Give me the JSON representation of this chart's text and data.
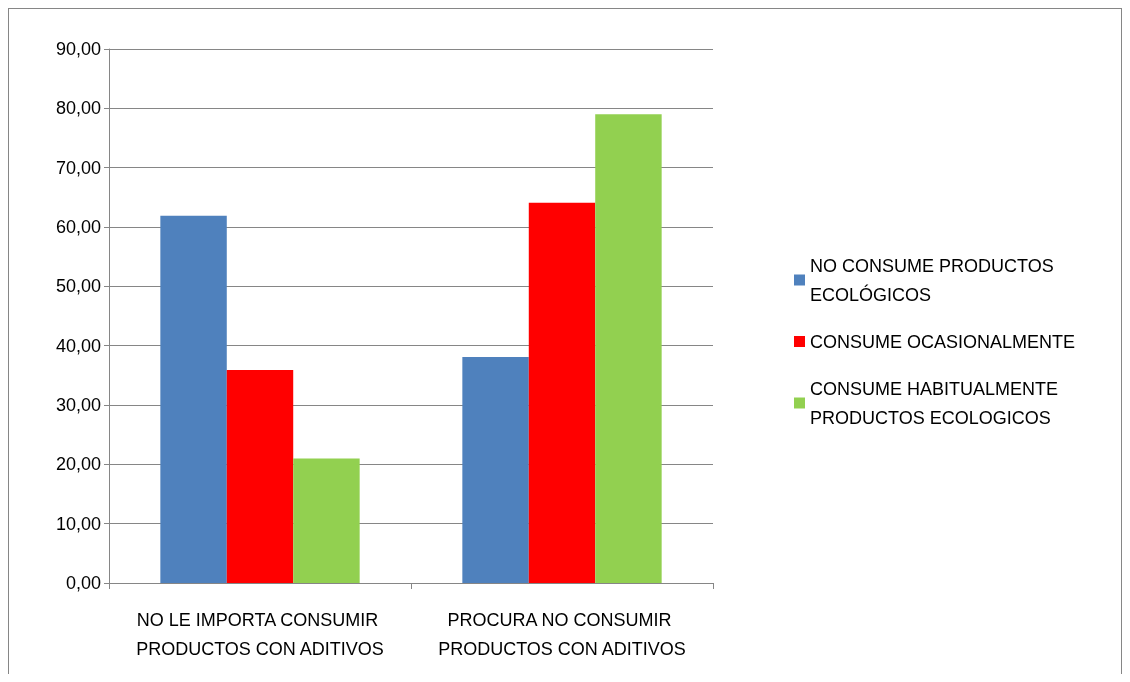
{
  "chart_data": {
    "type": "bar",
    "categories": [
      "NO LE IMPORTA CONSUMIR PRODUCTOS CON ADITIVOS",
      "PROCURA NO CONSUMIR PRODUCTOS CON ADITIVOS"
    ],
    "series": [
      {
        "name": "NO CONSUME PRODUCTOS ECOLÓGICOS",
        "color": "#4f81bd",
        "values": [
          61.9,
          38.1
        ]
      },
      {
        "name": "CONSUME OCASIONALMENTE",
        "color": "#ff0000",
        "values": [
          35.9,
          64.1
        ]
      },
      {
        "name": "CONSUME HABITUALMENTE PRODUCTOS ECOLOGICOS",
        "color": "#92d050",
        "values": [
          21.0,
          79.0
        ]
      }
    ],
    "ylim": [
      0,
      90
    ],
    "yticks": [
      {
        "value": 0,
        "label": "0,00"
      },
      {
        "value": 10,
        "label": "10,00"
      },
      {
        "value": 20,
        "label": "20,00"
      },
      {
        "value": 30,
        "label": "30,00"
      },
      {
        "value": 40,
        "label": "40,00"
      },
      {
        "value": 50,
        "label": "50,00"
      },
      {
        "value": 60,
        "label": "60,00"
      },
      {
        "value": 70,
        "label": "70,00"
      },
      {
        "value": 80,
        "label": "80,00"
      },
      {
        "value": 90,
        "label": "90,00"
      }
    ],
    "grid": "y",
    "legend": "right"
  }
}
